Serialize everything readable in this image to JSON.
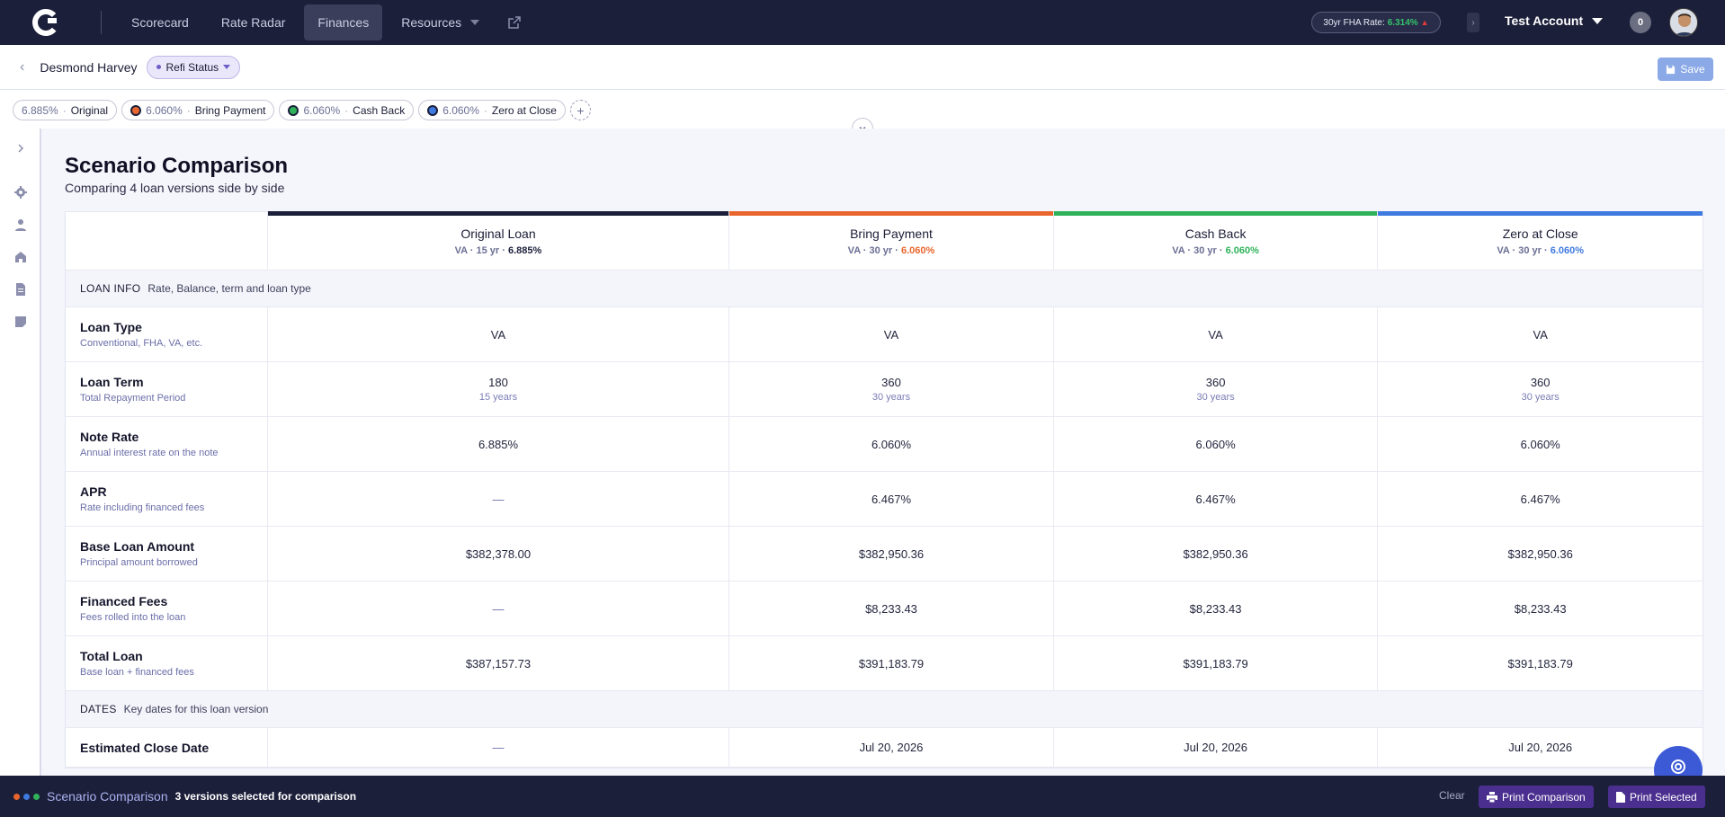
{
  "nav": {
    "items": [
      {
        "label": "Scorecard"
      },
      {
        "label": "Rate Radar"
      },
      {
        "label": "Finances"
      },
      {
        "label": "Resources"
      }
    ],
    "rate_label": "30yr FHA Rate:",
    "rate_value": "6.314%",
    "account": "Test Account",
    "notifications": "0"
  },
  "subheader": {
    "client": "Desmond Harvey",
    "status": "Refi Status",
    "save": "Save"
  },
  "chips": [
    {
      "rate": "6.885%",
      "name": "Original",
      "dot_color": ""
    },
    {
      "rate": "6.060%",
      "name": "Bring Payment",
      "dot_color": "#e8662e"
    },
    {
      "rate": "6.060%",
      "name": "Cash Back",
      "dot_color": "#2fb35a"
    },
    {
      "rate": "6.060%",
      "name": "Zero at Close",
      "dot_color": "#3f7ae0"
    }
  ],
  "page": {
    "title": "Scenario Comparison",
    "subtitle": "Comparing 4 loan versions side by side"
  },
  "columns": [
    {
      "name": "Original Loan",
      "type": "VA",
      "term": "15 yr",
      "rate": "6.885%",
      "color": "#1c1f3a",
      "rate_color": "#1c1f3a"
    },
    {
      "name": "Bring Payment",
      "type": "VA",
      "term": "30 yr",
      "rate": "6.060%",
      "color": "#e8662e",
      "rate_color": "#e8662e"
    },
    {
      "name": "Cash Back",
      "type": "VA",
      "term": "30 yr",
      "rate": "6.060%",
      "color": "#2fb35a",
      "rate_color": "#2fb35a"
    },
    {
      "name": "Zero at Close",
      "type": "VA",
      "term": "30 yr",
      "rate": "6.060%",
      "color": "#3f7ae0",
      "rate_color": "#3f7ae0"
    }
  ],
  "sections": {
    "loan_info": {
      "label": "LOAN INFO",
      "desc": "Rate, Balance, term and loan type"
    },
    "dates": {
      "label": "DATES",
      "desc": "Key dates for this loan version"
    }
  },
  "rows": [
    {
      "name": "Loan Type",
      "desc": "Conventional, FHA, VA, etc.",
      "values": [
        "VA",
        "VA",
        "VA",
        "VA"
      ],
      "subs": [
        "",
        "",
        "",
        ""
      ]
    },
    {
      "name": "Loan Term",
      "desc": "Total Repayment Period",
      "values": [
        "180",
        "360",
        "360",
        "360"
      ],
      "subs": [
        "15 years",
        "30 years",
        "30 years",
        "30 years"
      ]
    },
    {
      "name": "Note Rate",
      "desc": "Annual interest rate on the note",
      "values": [
        "6.885%",
        "6.060%",
        "6.060%",
        "6.060%"
      ],
      "subs": [
        "",
        "",
        "",
        ""
      ]
    },
    {
      "name": "APR",
      "desc": "Rate including financed fees",
      "values": [
        "—",
        "6.467%",
        "6.467%",
        "6.467%"
      ],
      "subs": [
        "",
        "",
        "",
        ""
      ]
    },
    {
      "name": "Base Loan Amount",
      "desc": "Principal amount borrowed",
      "values": [
        "$382,378.00",
        "$382,950.36",
        "$382,950.36",
        "$382,950.36"
      ],
      "subs": [
        "",
        "",
        "",
        ""
      ]
    },
    {
      "name": "Financed Fees",
      "desc": "Fees rolled into the loan",
      "values": [
        "—",
        "$8,233.43",
        "$8,233.43",
        "$8,233.43"
      ],
      "subs": [
        "",
        "",
        "",
        ""
      ]
    },
    {
      "name": "Total Loan",
      "desc": "Base loan + financed fees",
      "values": [
        "$387,157.73",
        "$391,183.79",
        "$391,183.79",
        "$391,183.79"
      ],
      "subs": [
        "",
        "",
        "",
        ""
      ]
    }
  ],
  "date_rows": [
    {
      "name": "Estimated Close Date",
      "values": [
        "—",
        "Jul 20, 2026",
        "Jul 20, 2026",
        "Jul 20, 2026"
      ]
    }
  ],
  "bottom": {
    "title": "Scenario Comparison",
    "count": "3 versions selected for comparison",
    "clear": "Clear",
    "print_comparison": "Print Comparison",
    "print_selected": "Print Selected",
    "dot_colors": [
      "#e8662e",
      "#3f7ae0",
      "#2fb35a"
    ]
  }
}
